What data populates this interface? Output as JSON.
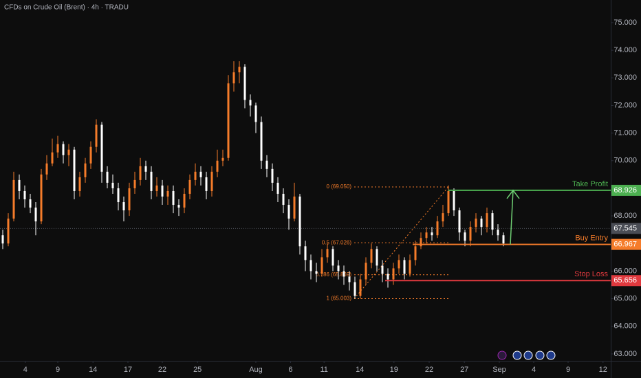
{
  "chart_data": {
    "type": "candlestick",
    "title": "CFDs on Crude Oil (Brent) · 4h · TRADU",
    "ohlc": {
      "open": [
        67.3,
        67.0,
        67.9,
        69.3,
        68.9,
        68.6,
        68.3,
        67.8,
        69.5,
        69.9,
        70.3,
        70.6,
        70.2,
        70.4,
        68.9,
        69.4,
        69.9,
        70.5,
        71.3,
        69.6,
        69.2,
        69.0,
        68.5,
        68.2,
        69.0,
        69.3,
        69.8,
        69.6,
        68.9,
        69.1,
        68.7,
        68.9,
        68.4,
        68.3,
        68.8,
        69.3,
        69.6,
        69.4,
        68.9,
        69.6,
        70.0,
        70.1,
        72.8,
        73.2,
        73.4,
        72.2,
        72.0,
        71.4,
        70.0,
        69.7,
        69.2,
        68.8,
        68.4,
        67.9,
        68.7,
        66.9,
        66.4,
        66.0,
        65.9,
        66.5,
        66.8,
        66.2,
        66.0,
        65.8,
        65.6,
        65.1,
        65.7,
        66.3,
        66.8,
        66.2,
        65.9,
        65.7,
        66.1,
        66.4,
        65.9,
        66.4,
        66.9,
        67.2,
        67.4,
        67.3,
        67.8,
        68.1,
        68.9,
        68.2,
        67.4,
        67.1,
        67.6,
        67.9,
        67.6,
        68.1,
        67.5,
        67.3
      ],
      "high": [
        67.5,
        68.1,
        69.6,
        69.5,
        69.1,
        68.8,
        68.5,
        69.7,
        70.2,
        70.8,
        70.9,
        70.7,
        70.6,
        70.5,
        69.6,
        70.1,
        70.7,
        71.5,
        71.4,
        69.8,
        69.5,
        69.2,
        68.7,
        69.2,
        69.6,
        70.1,
        70.0,
        69.8,
        69.4,
        69.3,
        69.1,
        69.1,
        68.6,
        69.0,
        69.5,
        69.9,
        69.8,
        69.6,
        69.8,
        70.4,
        70.4,
        73.1,
        73.6,
        73.6,
        73.5,
        72.4,
        72.1,
        71.6,
        70.2,
        69.9,
        69.4,
        69.0,
        68.6,
        69.2,
        68.8,
        67.1,
        66.6,
        66.3,
        66.8,
        67.0,
        66.9,
        66.4,
        66.2,
        66.0,
        65.8,
        65.9,
        66.5,
        67.0,
        66.9,
        66.4,
        66.1,
        66.3,
        66.6,
        66.5,
        66.6,
        67.1,
        67.4,
        67.6,
        67.6,
        68.0,
        68.4,
        69.1,
        69.0,
        68.3,
        67.5,
        67.8,
        68.1,
        68.0,
        68.3,
        68.2,
        67.7,
        67.4
      ],
      "low": [
        66.8,
        66.9,
        67.8,
        68.6,
        68.3,
        68.1,
        67.3,
        67.7,
        69.3,
        69.8,
        70.1,
        69.9,
        69.8,
        68.6,
        68.7,
        69.2,
        69.7,
        70.3,
        69.2,
        69.0,
        68.8,
        68.2,
        67.8,
        68.0,
        68.8,
        69.1,
        69.3,
        68.6,
        68.7,
        68.4,
        68.4,
        68.1,
        68.0,
        68.1,
        68.6,
        69.1,
        69.1,
        68.6,
        68.7,
        69.4,
        69.8,
        70.0,
        72.5,
        72.8,
        71.9,
        71.6,
        71.0,
        69.7,
        69.4,
        68.9,
        68.5,
        68.1,
        67.5,
        67.8,
        66.6,
        66.0,
        65.7,
        65.6,
        65.8,
        66.3,
        66.0,
        65.7,
        65.5,
        65.3,
        65.0,
        65.0,
        65.5,
        66.1,
        66.0,
        65.6,
        65.4,
        65.5,
        65.9,
        65.7,
        65.8,
        66.2,
        66.8,
        67.0,
        67.1,
        67.2,
        67.6,
        68.0,
        68.0,
        67.1,
        66.9,
        66.9,
        67.4,
        67.3,
        67.4,
        67.3,
        67.1,
        66.9
      ],
      "close": [
        67.0,
        67.9,
        69.3,
        68.9,
        68.6,
        68.3,
        67.8,
        69.5,
        69.9,
        70.3,
        70.6,
        70.2,
        70.4,
        68.9,
        69.4,
        69.9,
        70.5,
        71.3,
        69.6,
        69.2,
        69.0,
        68.5,
        68.2,
        69.0,
        69.3,
        69.8,
        69.6,
        68.9,
        69.1,
        68.7,
        68.9,
        68.4,
        68.3,
        68.8,
        69.3,
        69.6,
        69.4,
        68.9,
        69.6,
        70.0,
        70.1,
        72.8,
        73.2,
        73.4,
        72.2,
        72.0,
        71.4,
        70.0,
        69.7,
        69.2,
        68.8,
        68.4,
        67.9,
        68.7,
        66.9,
        66.4,
        66.0,
        65.9,
        66.5,
        66.8,
        66.2,
        66.0,
        65.8,
        65.6,
        65.1,
        65.7,
        66.3,
        66.8,
        66.2,
        65.9,
        65.7,
        66.1,
        66.4,
        65.9,
        66.4,
        66.9,
        67.2,
        67.4,
        67.3,
        67.8,
        68.1,
        68.9,
        68.2,
        67.4,
        67.1,
        67.6,
        67.9,
        67.6,
        68.1,
        67.5,
        67.3,
        67.0
      ]
    },
    "up_color": "#f57c2a",
    "down_color": "#ffffff",
    "xlim": [
      -0.5,
      110.5
    ],
    "xticks": [
      {
        "value": 4.1,
        "label": "4"
      },
      {
        "value": 10.0,
        "label": "9"
      },
      {
        "value": 16.4,
        "label": "14"
      },
      {
        "value": 22.75,
        "label": "17"
      },
      {
        "value": 29.0,
        "label": "22"
      },
      {
        "value": 35.4,
        "label": "25"
      },
      {
        "value": 46.0,
        "label": "Aug"
      },
      {
        "value": 52.3,
        "label": "6"
      },
      {
        "value": 58.4,
        "label": "11"
      },
      {
        "value": 64.9,
        "label": "14"
      },
      {
        "value": 71.1,
        "label": "19"
      },
      {
        "value": 77.5,
        "label": "22"
      },
      {
        "value": 83.9,
        "label": "27"
      },
      {
        "value": 90.25,
        "label": "Sep"
      },
      {
        "value": 96.5,
        "label": "4"
      },
      {
        "value": 102.75,
        "label": "9"
      },
      {
        "value": 109.1,
        "label": "12"
      }
    ],
    "ylim": [
      62.75,
      75.82
    ],
    "yticks": [
      {
        "value": 63,
        "label": "63.000"
      },
      {
        "value": 64,
        "label": "64.000"
      },
      {
        "value": 65,
        "label": "65.000"
      },
      {
        "value": 66,
        "label": "66.000"
      },
      {
        "value": 67,
        "label": "67.000"
      },
      {
        "value": 68,
        "label": "68.000"
      },
      {
        "value": 69,
        "label": "69.000"
      },
      {
        "value": 70,
        "label": "70.000"
      },
      {
        "value": 71,
        "label": "71.000"
      },
      {
        "value": 72,
        "label": "72.000"
      },
      {
        "value": 73,
        "label": "73.000"
      },
      {
        "value": 74,
        "label": "74.000"
      },
      {
        "value": 75,
        "label": "75.000"
      }
    ],
    "current_price": {
      "value": 67.545,
      "color": "#4a4d55"
    },
    "levels": [
      {
        "name": "Take Profit",
        "value": 68.926,
        "color": "#4caf50"
      },
      {
        "name": "Buy Entry",
        "value": 66.967,
        "color": "#f57c2a"
      },
      {
        "name": "Stop Loss",
        "value": 65.656,
        "color": "#e0393e"
      }
    ],
    "fibonacci": {
      "color": "#f57c2a",
      "levels": [
        {
          "label": "0 (69.050)",
          "value": 69.05
        },
        {
          "label": "0.5 (67.026)",
          "value": 67.026
        },
        {
          "label": "0.786 (65.869)",
          "value": 65.869
        },
        {
          "label": "1 (65.003)",
          "value": 65.003
        }
      ]
    }
  }
}
